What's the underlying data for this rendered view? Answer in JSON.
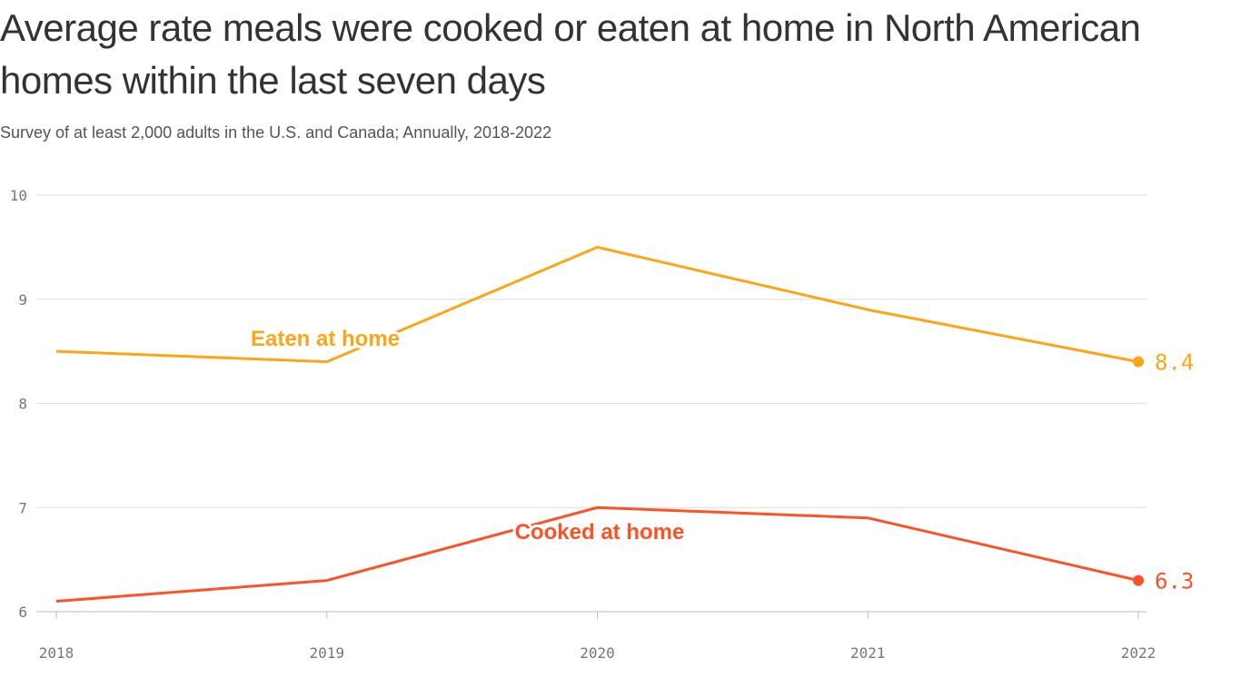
{
  "chart_data": {
    "type": "line",
    "title": "Average rate meals were cooked or eaten at home in North American homes within the last seven days",
    "subtitle": "Survey of at least 2,000 adults in the U.S. and Canada; Annually, 2018-2022",
    "xlabel": "",
    "ylabel": "",
    "x": [
      "2018",
      "2019",
      "2020",
      "2021",
      "2022"
    ],
    "ylim": [
      6,
      10
    ],
    "yticks": [
      6,
      7,
      8,
      9,
      10
    ],
    "grid": true,
    "series": [
      {
        "name": "Eaten at home",
        "color": "#FFA515",
        "values": [
          8.5,
          8.4,
          9.5,
          8.9,
          8.4
        ],
        "end_label": "8.4"
      },
      {
        "name": "Cooked at home",
        "color": "#FF5126",
        "values": [
          6.1,
          6.3,
          7.0,
          6.9,
          6.3
        ],
        "end_label": "6.3"
      }
    ]
  }
}
